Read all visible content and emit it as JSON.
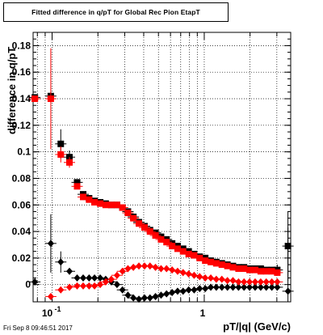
{
  "title": "Fitted difference in q/pT for Global Rec Pion EtapT",
  "timestamp": "Fri Sep  8 09:46:51 2017",
  "colors": {
    "red": "#ff0000",
    "black": "#000000",
    "grid": "#000000",
    "frame": "#000000"
  },
  "chart_data": {
    "type": "scatter",
    "title": "Fitted difference in q/pT for Global Rec Pion EtapT",
    "xlabel": "pT/|q| (GeV/c)",
    "ylabel": "difference in q/pT",
    "xscale": "log",
    "xlim": [
      0.075,
      3.7
    ],
    "ylim": [
      -0.013,
      0.19
    ],
    "grid": true,
    "x_tick_labels": [
      {
        "value": 0.1,
        "label": "10",
        "sup": "-1"
      },
      {
        "value": 1,
        "label": "1",
        "sup": ""
      }
    ],
    "y_ticks": [
      0,
      0.02,
      0.04,
      0.06,
      0.08,
      0.1,
      0.12,
      0.14,
      0.16,
      0.18
    ],
    "y_tick_labels": [
      "0",
      "0.02",
      "0.04",
      "0.06",
      "0.08",
      "0.1",
      "0.12",
      "0.14",
      "0.16",
      "0.18"
    ],
    "series": [
      {
        "marker": "square",
        "color": "#000000",
        "points": [
          {
            "x": 0.077,
            "y": 0.141,
            "err": 0.002
          },
          {
            "x": 0.098,
            "y": 0.142,
            "err": 0.003
          },
          {
            "x": 0.114,
            "y": 0.106,
            "err": 0.011
          },
          {
            "x": 0.13,
            "y": 0.096,
            "err": 0.005
          },
          {
            "x": 0.146,
            "y": 0.077
          },
          {
            "x": 0.16,
            "y": 0.068
          },
          {
            "x": 0.175,
            "y": 0.065
          },
          {
            "x": 0.19,
            "y": 0.063
          },
          {
            "x": 0.207,
            "y": 0.062
          },
          {
            "x": 0.225,
            "y": 0.061
          },
          {
            "x": 0.245,
            "y": 0.06
          },
          {
            "x": 0.267,
            "y": 0.06
          },
          {
            "x": 0.29,
            "y": 0.058
          },
          {
            "x": 0.315,
            "y": 0.055
          },
          {
            "x": 0.342,
            "y": 0.051
          },
          {
            "x": 0.372,
            "y": 0.047
          },
          {
            "x": 0.405,
            "y": 0.044
          },
          {
            "x": 0.44,
            "y": 0.041
          },
          {
            "x": 0.478,
            "y": 0.039
          },
          {
            "x": 0.52,
            "y": 0.036
          },
          {
            "x": 0.565,
            "y": 0.034
          },
          {
            "x": 0.615,
            "y": 0.031
          },
          {
            "x": 0.668,
            "y": 0.029
          },
          {
            "x": 0.726,
            "y": 0.027
          },
          {
            "x": 0.79,
            "y": 0.025
          },
          {
            "x": 0.858,
            "y": 0.023
          },
          {
            "x": 0.933,
            "y": 0.021
          },
          {
            "x": 1.015,
            "y": 0.02
          },
          {
            "x": 1.104,
            "y": 0.018
          },
          {
            "x": 1.2,
            "y": 0.017
          },
          {
            "x": 1.305,
            "y": 0.016
          },
          {
            "x": 1.42,
            "y": 0.015
          },
          {
            "x": 1.544,
            "y": 0.014
          },
          {
            "x": 1.68,
            "y": 0.013
          },
          {
            "x": 1.826,
            "y": 0.013
          },
          {
            "x": 1.985,
            "y": 0.012
          },
          {
            "x": 2.16,
            "y": 0.012
          },
          {
            "x": 2.35,
            "y": 0.012
          },
          {
            "x": 2.555,
            "y": 0.011
          },
          {
            "x": 2.78,
            "y": 0.011
          },
          {
            "x": 3.02,
            "y": 0.011,
            "err": 0.004
          },
          {
            "x": 3.55,
            "y": 0.029,
            "err": 0.026
          }
        ]
      },
      {
        "marker": "square",
        "color": "#ff0000",
        "points": [
          {
            "x": 0.077,
            "y": 0.14,
            "err": 0.002
          },
          {
            "x": 0.098,
            "y": 0.14,
            "err": 0.038
          },
          {
            "x": 0.114,
            "y": 0.098,
            "err": 0.006
          },
          {
            "x": 0.13,
            "y": 0.092,
            "err": 0.004
          },
          {
            "x": 0.146,
            "y": 0.074
          },
          {
            "x": 0.16,
            "y": 0.066
          },
          {
            "x": 0.175,
            "y": 0.064
          },
          {
            "x": 0.19,
            "y": 0.062
          },
          {
            "x": 0.207,
            "y": 0.061
          },
          {
            "x": 0.225,
            "y": 0.06
          },
          {
            "x": 0.245,
            "y": 0.06
          },
          {
            "x": 0.267,
            "y": 0.06
          },
          {
            "x": 0.29,
            "y": 0.058
          },
          {
            "x": 0.315,
            "y": 0.054
          },
          {
            "x": 0.342,
            "y": 0.05
          },
          {
            "x": 0.372,
            "y": 0.046
          },
          {
            "x": 0.405,
            "y": 0.043
          },
          {
            "x": 0.44,
            "y": 0.04
          },
          {
            "x": 0.478,
            "y": 0.037
          },
          {
            "x": 0.52,
            "y": 0.034
          },
          {
            "x": 0.565,
            "y": 0.032
          },
          {
            "x": 0.615,
            "y": 0.029
          },
          {
            "x": 0.668,
            "y": 0.027
          },
          {
            "x": 0.726,
            "y": 0.025
          },
          {
            "x": 0.79,
            "y": 0.023
          },
          {
            "x": 0.858,
            "y": 0.022
          },
          {
            "x": 0.933,
            "y": 0.02
          },
          {
            "x": 1.015,
            "y": 0.018
          },
          {
            "x": 1.104,
            "y": 0.017
          },
          {
            "x": 1.2,
            "y": 0.016
          },
          {
            "x": 1.305,
            "y": 0.015
          },
          {
            "x": 1.42,
            "y": 0.014
          },
          {
            "x": 1.544,
            "y": 0.013
          },
          {
            "x": 1.68,
            "y": 0.012
          },
          {
            "x": 1.826,
            "y": 0.012
          },
          {
            "x": 1.985,
            "y": 0.011
          },
          {
            "x": 2.16,
            "y": 0.011
          },
          {
            "x": 2.35,
            "y": 0.01
          },
          {
            "x": 2.555,
            "y": 0.01
          },
          {
            "x": 2.78,
            "y": 0.01
          },
          {
            "x": 3.02,
            "y": 0.009
          }
        ]
      },
      {
        "marker": "diamond",
        "color": "#000000",
        "points": [
          {
            "x": 0.077,
            "y": 0.002
          },
          {
            "x": 0.098,
            "y": 0.031,
            "err": 0.022
          },
          {
            "x": 0.114,
            "y": 0.017,
            "err": 0.008
          },
          {
            "x": 0.13,
            "y": 0.01
          },
          {
            "x": 0.146,
            "y": 0.005
          },
          {
            "x": 0.16,
            "y": 0.005
          },
          {
            "x": 0.175,
            "y": 0.005
          },
          {
            "x": 0.19,
            "y": 0.005
          },
          {
            "x": 0.207,
            "y": 0.005
          },
          {
            "x": 0.225,
            "y": 0.004
          },
          {
            "x": 0.245,
            "y": 0.002
          },
          {
            "x": 0.267,
            "y": 0.0
          },
          {
            "x": 0.29,
            "y": -0.004
          },
          {
            "x": 0.315,
            "y": -0.008
          },
          {
            "x": 0.342,
            "y": -0.01
          },
          {
            "x": 0.372,
            "y": -0.011
          },
          {
            "x": 0.405,
            "y": -0.01
          },
          {
            "x": 0.44,
            "y": -0.01
          },
          {
            "x": 0.478,
            "y": -0.009
          },
          {
            "x": 0.52,
            "y": -0.008
          },
          {
            "x": 0.565,
            "y": -0.007
          },
          {
            "x": 0.615,
            "y": -0.006
          },
          {
            "x": 0.668,
            "y": -0.005
          },
          {
            "x": 0.726,
            "y": -0.005
          },
          {
            "x": 0.79,
            "y": -0.004
          },
          {
            "x": 0.858,
            "y": -0.004
          },
          {
            "x": 0.933,
            "y": -0.003
          },
          {
            "x": 1.015,
            "y": -0.003
          },
          {
            "x": 1.104,
            "y": -0.002
          },
          {
            "x": 1.2,
            "y": -0.002
          },
          {
            "x": 1.305,
            "y": -0.002
          },
          {
            "x": 1.42,
            "y": -0.002
          },
          {
            "x": 1.544,
            "y": -0.002
          },
          {
            "x": 1.68,
            "y": -0.002
          },
          {
            "x": 1.826,
            "y": -0.002
          },
          {
            "x": 1.985,
            "y": -0.002
          },
          {
            "x": 2.16,
            "y": -0.002
          },
          {
            "x": 2.35,
            "y": -0.002
          },
          {
            "x": 2.555,
            "y": -0.002
          },
          {
            "x": 2.78,
            "y": -0.002
          },
          {
            "x": 3.02,
            "y": -0.002
          },
          {
            "x": 3.55,
            "y": -0.005,
            "err": 0.048
          }
        ]
      },
      {
        "marker": "diamond",
        "color": "#ff0000",
        "points": [
          {
            "x": 0.098,
            "y": -0.009
          },
          {
            "x": 0.114,
            "y": -0.004
          },
          {
            "x": 0.13,
            "y": -0.002
          },
          {
            "x": 0.146,
            "y": -0.001
          },
          {
            "x": 0.16,
            "y": -0.001
          },
          {
            "x": 0.175,
            "y": -0.001
          },
          {
            "x": 0.19,
            "y": -0.001
          },
          {
            "x": 0.207,
            "y": 0.0
          },
          {
            "x": 0.225,
            "y": 0.002
          },
          {
            "x": 0.245,
            "y": 0.004
          },
          {
            "x": 0.267,
            "y": 0.007
          },
          {
            "x": 0.29,
            "y": 0.01
          },
          {
            "x": 0.315,
            "y": 0.012
          },
          {
            "x": 0.342,
            "y": 0.013
          },
          {
            "x": 0.372,
            "y": 0.014
          },
          {
            "x": 0.405,
            "y": 0.014
          },
          {
            "x": 0.44,
            "y": 0.014
          },
          {
            "x": 0.478,
            "y": 0.013
          },
          {
            "x": 0.52,
            "y": 0.012
          },
          {
            "x": 0.565,
            "y": 0.012
          },
          {
            "x": 0.615,
            "y": 0.011
          },
          {
            "x": 0.668,
            "y": 0.01
          },
          {
            "x": 0.726,
            "y": 0.009
          },
          {
            "x": 0.79,
            "y": 0.008
          },
          {
            "x": 0.858,
            "y": 0.007
          },
          {
            "x": 0.933,
            "y": 0.006
          },
          {
            "x": 1.015,
            "y": 0.005
          },
          {
            "x": 1.104,
            "y": 0.005
          },
          {
            "x": 1.2,
            "y": 0.004
          },
          {
            "x": 1.305,
            "y": 0.004
          },
          {
            "x": 1.42,
            "y": 0.003
          },
          {
            "x": 1.544,
            "y": 0.003
          },
          {
            "x": 1.68,
            "y": 0.002
          },
          {
            "x": 1.826,
            "y": 0.002
          },
          {
            "x": 1.985,
            "y": 0.002
          },
          {
            "x": 2.16,
            "y": 0.002
          },
          {
            "x": 2.35,
            "y": 0.002
          },
          {
            "x": 2.555,
            "y": 0.002
          },
          {
            "x": 2.78,
            "y": 0.002
          },
          {
            "x": 3.02,
            "y": 0.002
          }
        ]
      }
    ]
  }
}
